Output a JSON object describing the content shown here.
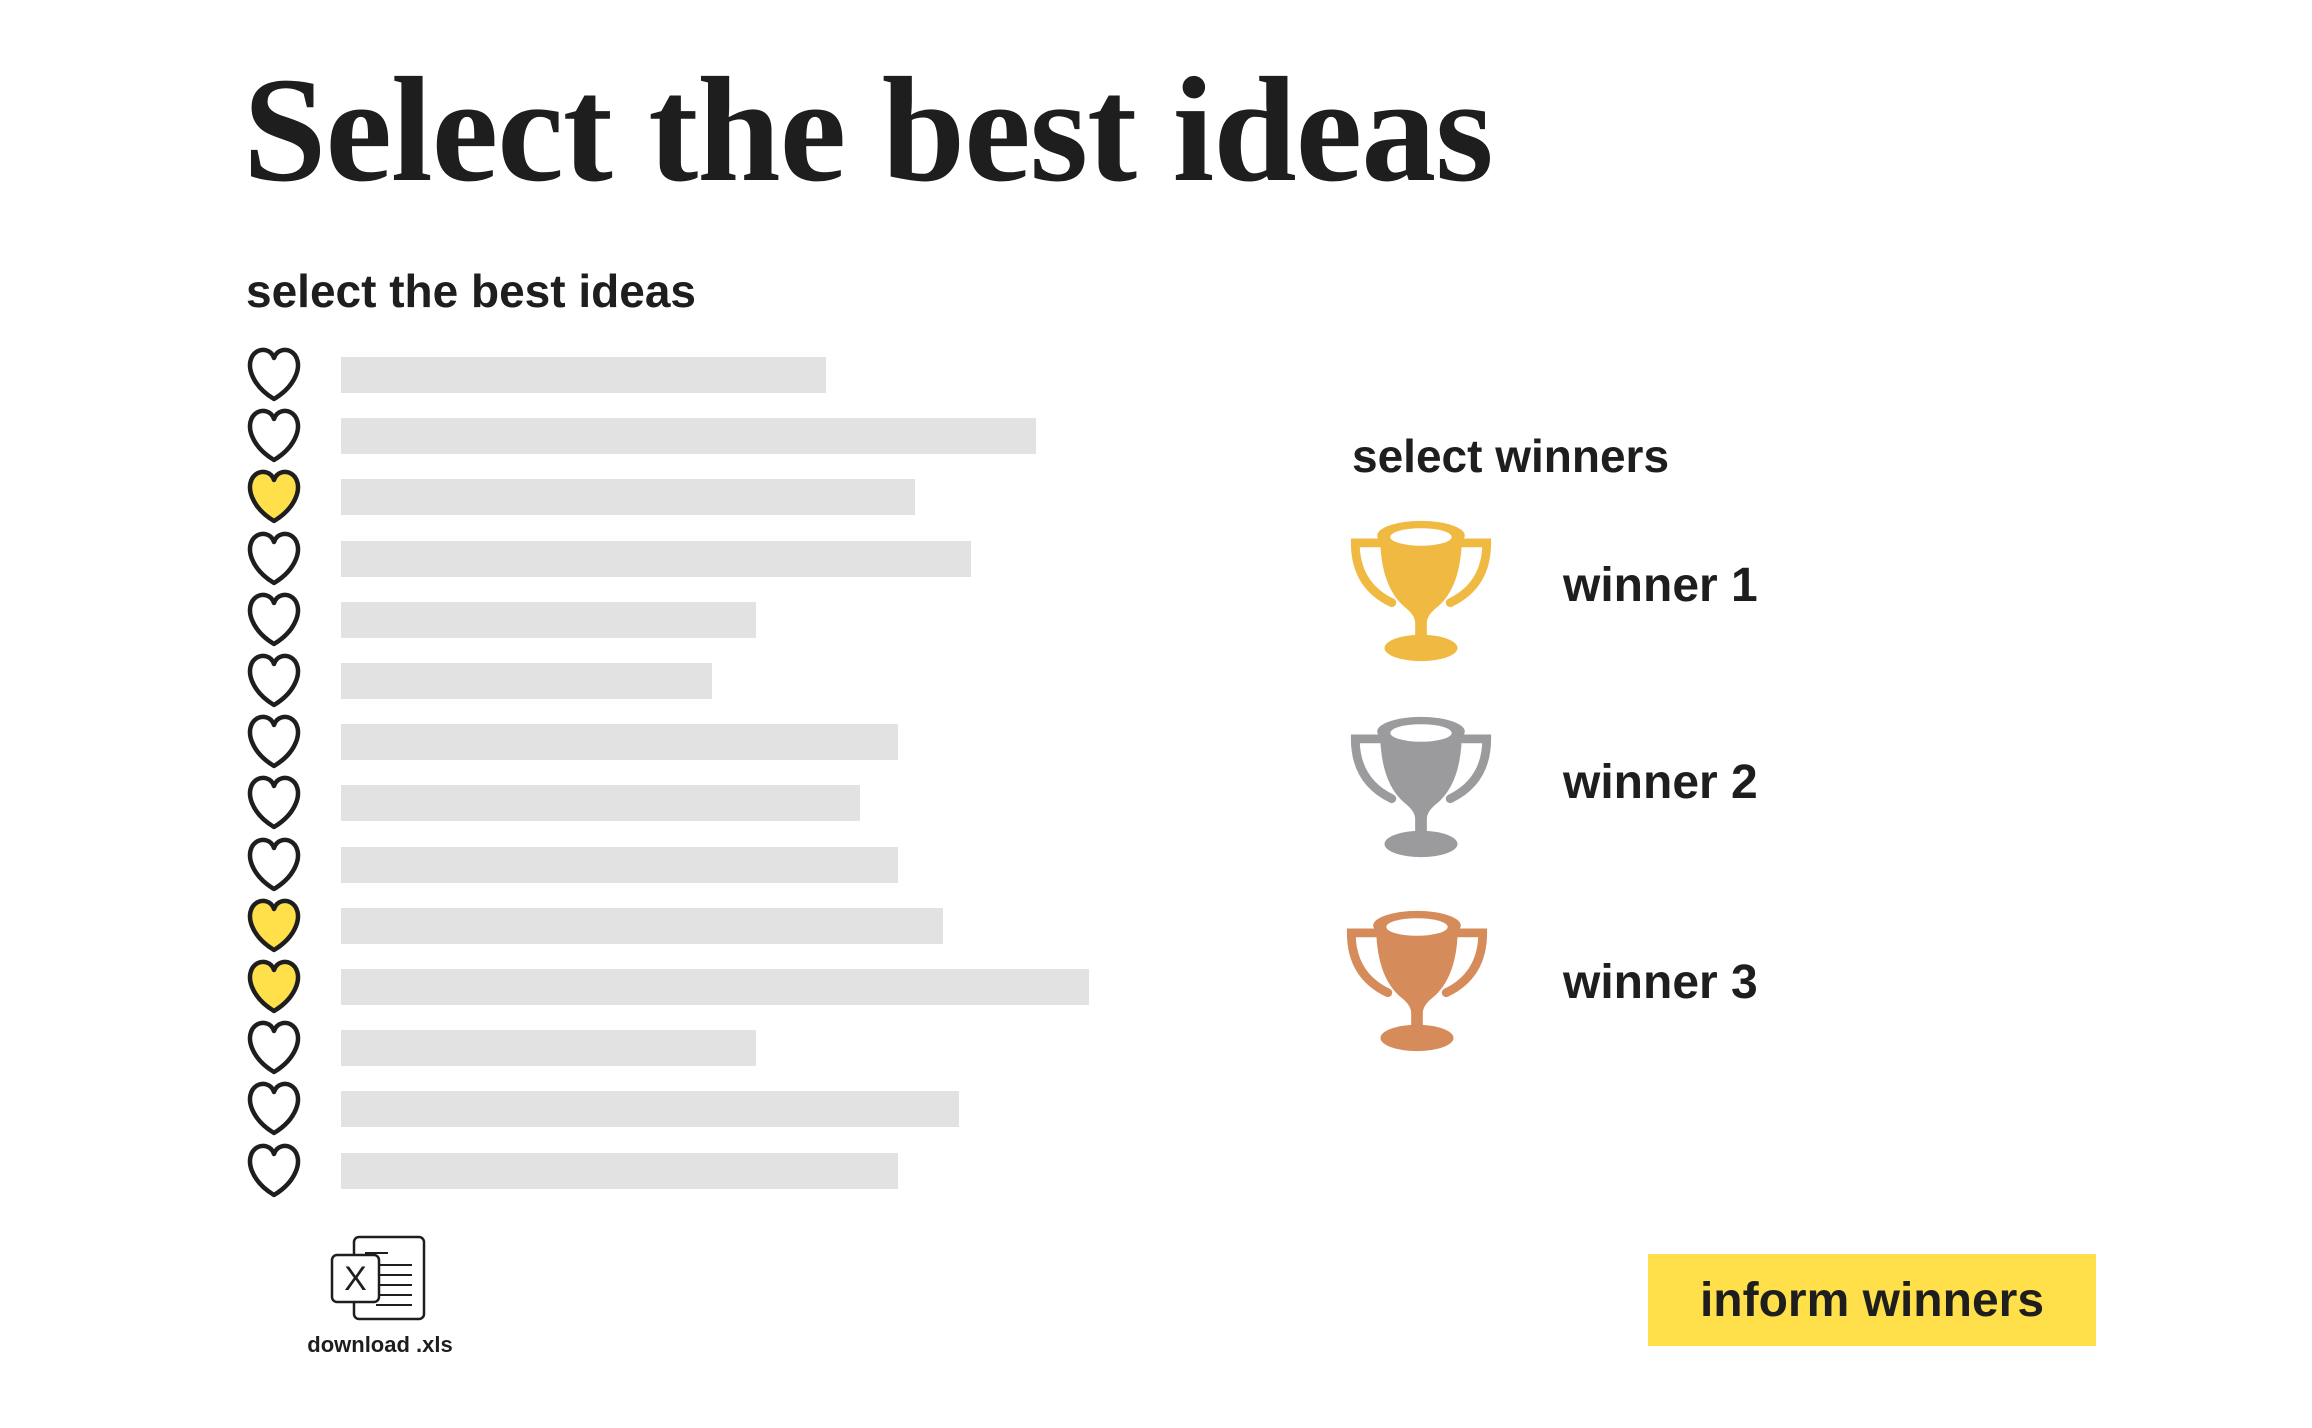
{
  "title": "Select the best ideas",
  "ideas_section": {
    "heading": "select the best ideas",
    "ideas": [
      {
        "liked": false
      },
      {
        "liked": false
      },
      {
        "liked": true
      },
      {
        "liked": false
      },
      {
        "liked": false
      },
      {
        "liked": false
      },
      {
        "liked": false
      },
      {
        "liked": false
      },
      {
        "liked": false
      },
      {
        "liked": true
      },
      {
        "liked": true
      },
      {
        "liked": false
      },
      {
        "liked": false
      },
      {
        "liked": false
      }
    ]
  },
  "winners_section": {
    "heading": "select winners",
    "winners": [
      {
        "label": "winner 1",
        "icon": "trophy-gold-icon",
        "color": "#F0B942"
      },
      {
        "label": "winner 2",
        "icon": "trophy-silver-icon",
        "color": "#9B9B9E"
      },
      {
        "label": "winner 3",
        "icon": "trophy-bronze-icon",
        "color": "#D68C5A"
      }
    ]
  },
  "download": {
    "label": "download .xls",
    "icon": "excel-file-icon"
  },
  "inform_button": {
    "label": "inform winners",
    "color": "#FFDF4A"
  },
  "colors": {
    "heart_liked": "#FFDF4A",
    "heart_outline": "#1E1E1E",
    "placeholder_bar": "#E2E2E2"
  }
}
